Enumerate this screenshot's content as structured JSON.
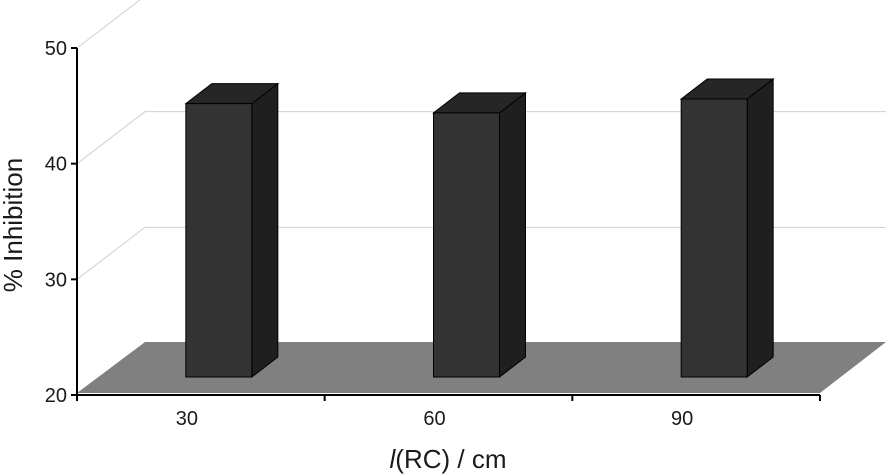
{
  "chart_data": {
    "type": "bar",
    "categories": [
      "30",
      "60",
      "90"
    ],
    "values": [
      44.5,
      43.7,
      44.9
    ],
    "title": "",
    "xlabel_var": "l",
    "xlabel_rest": "(RC) / cm",
    "ylabel": "% Inhibition",
    "ylim": [
      20,
      50
    ],
    "yticks": [
      "20",
      "30",
      "40",
      "50"
    ],
    "grid": true,
    "style": "3d-column",
    "colors": {
      "bar_front": "#333333",
      "bar_side": "#1f1f1f",
      "bar_top": "#262626",
      "floor": "#808080",
      "gridline": "#d0d0d0",
      "axis": "#000000"
    }
  }
}
